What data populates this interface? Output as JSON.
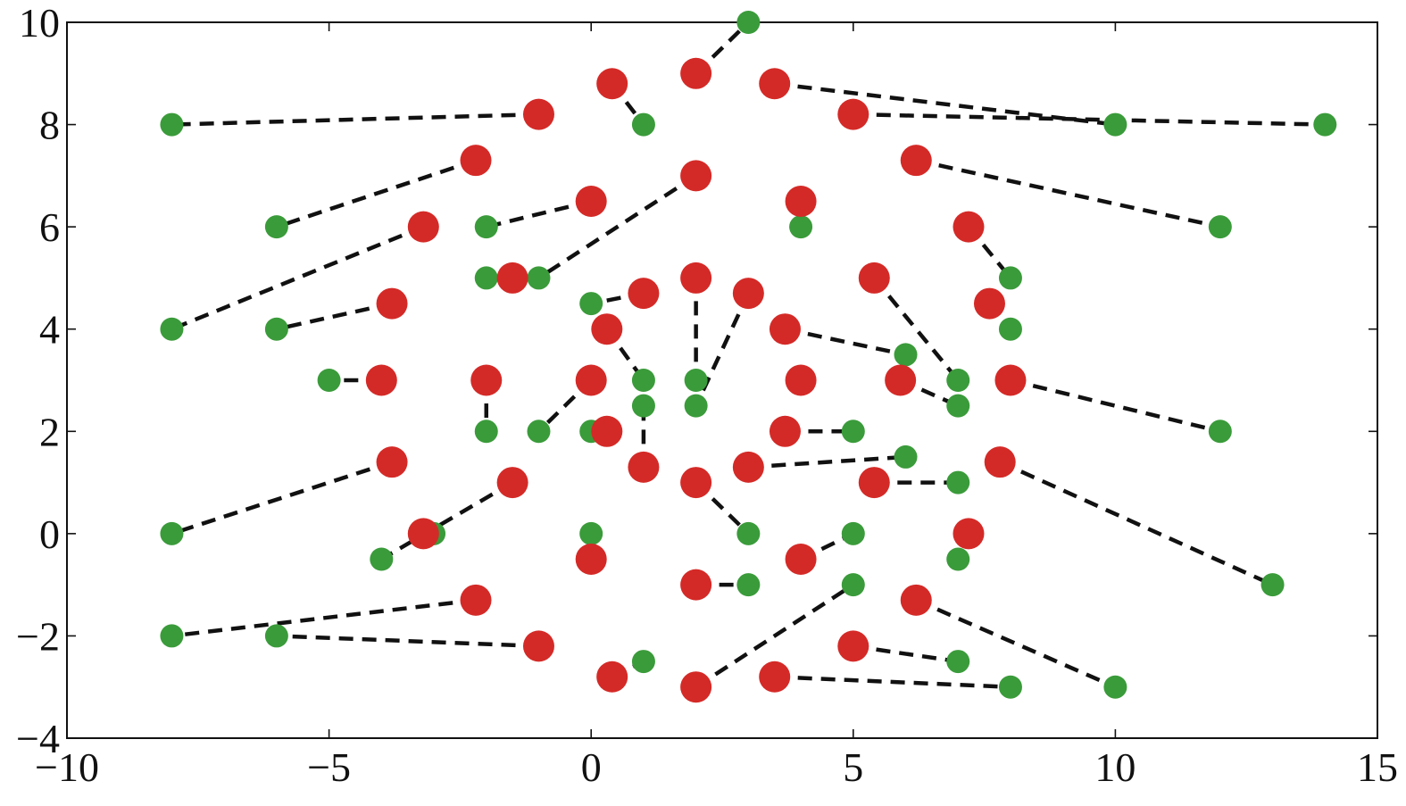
{
  "chart_data": {
    "type": "scatter",
    "title": "",
    "xlabel": "",
    "ylabel": "",
    "xlim": [
      -10,
      15
    ],
    "ylim": [
      -4,
      10
    ],
    "xticks": [
      -10,
      -5,
      0,
      5,
      10,
      15
    ],
    "yticks": [
      -4,
      -2,
      0,
      2,
      4,
      6,
      8,
      10
    ],
    "xtick_labels": [
      "−10",
      "−5",
      "0",
      "5",
      "10",
      "15"
    ],
    "ytick_labels": [
      "−4",
      "−2",
      "0",
      "2",
      "4",
      "6",
      "8",
      "10"
    ],
    "grid": false,
    "legend": "none",
    "colors": {
      "green_points": "#3a9b3a",
      "red_points": "#d42a27",
      "links": "#111111"
    },
    "pairs": [
      {
        "green": [
          -8,
          8
        ],
        "red": [
          -1,
          8.2
        ]
      },
      {
        "green": [
          1,
          8
        ],
        "red": [
          0.4,
          8.8
        ]
      },
      {
        "green": [
          3,
          10
        ],
        "red": [
          2,
          9
        ]
      },
      {
        "green": [
          10,
          8
        ],
        "red": [
          3.5,
          8.8
        ]
      },
      {
        "green": [
          14,
          8
        ],
        "red": [
          5,
          8.2
        ]
      },
      {
        "green": [
          -6,
          6
        ],
        "red": [
          -2.2,
          7.3
        ]
      },
      {
        "green": [
          -2,
          6
        ],
        "red": [
          0,
          6.5
        ]
      },
      {
        "green": [
          -1,
          5
        ],
        "red": [
          2,
          7
        ]
      },
      {
        "green": [
          4,
          6
        ],
        "red": [
          4,
          6.5
        ]
      },
      {
        "green": [
          12,
          6
        ],
        "red": [
          6.2,
          7.3
        ]
      },
      {
        "green": [
          8,
          5
        ],
        "red": [
          7.2,
          6
        ]
      },
      {
        "green": [
          -8,
          4
        ],
        "red": [
          -3.2,
          6
        ]
      },
      {
        "green": [
          -6,
          4
        ],
        "red": [
          -3.8,
          4.5
        ]
      },
      {
        "green": [
          -2,
          5
        ],
        "red": [
          -1.5,
          5
        ]
      },
      {
        "green": [
          0,
          4.5
        ],
        "red": [
          1,
          4.7
        ]
      },
      {
        "green": [
          2,
          3
        ],
        "red": [
          2,
          5
        ]
      },
      {
        "green": [
          2,
          2.5
        ],
        "red": [
          3,
          4.7
        ]
      },
      {
        "green": [
          7,
          3
        ],
        "red": [
          5.4,
          5
        ]
      },
      {
        "green": [
          8,
          4
        ],
        "red": [
          7.6,
          4.5
        ]
      },
      {
        "green": [
          1,
          3
        ],
        "red": [
          0.3,
          4
        ]
      },
      {
        "green": [
          6,
          3.5
        ],
        "red": [
          3.7,
          4
        ]
      },
      {
        "green": [
          -5,
          3
        ],
        "red": [
          -4,
          3
        ]
      },
      {
        "green": [
          -2,
          2
        ],
        "red": [
          -2,
          3
        ]
      },
      {
        "green": [
          -1,
          2
        ],
        "red": [
          0,
          3
        ]
      },
      {
        "green": [
          4,
          3
        ],
        "red": [
          4,
          3
        ]
      },
      {
        "green": [
          7,
          2.5
        ],
        "red": [
          5.9,
          3
        ]
      },
      {
        "green": [
          12,
          2
        ],
        "red": [
          8,
          3
        ]
      },
      {
        "green": [
          0,
          2
        ],
        "red": [
          0.3,
          2
        ]
      },
      {
        "green": [
          1,
          2.5
        ],
        "red": [
          1,
          1.3
        ]
      },
      {
        "green": [
          5,
          2
        ],
        "red": [
          3.7,
          2
        ]
      },
      {
        "green": [
          6,
          1.5
        ],
        "red": [
          3,
          1.3
        ]
      },
      {
        "green": [
          7,
          1
        ],
        "red": [
          5.4,
          1
        ]
      },
      {
        "green": [
          13,
          -1
        ],
        "red": [
          7.8,
          1.4
        ]
      },
      {
        "green": [
          -8,
          0
        ],
        "red": [
          -3.8,
          1.4
        ]
      },
      {
        "green": [
          -3,
          0
        ],
        "red": [
          -3.2,
          0
        ]
      },
      {
        "green": [
          -4,
          -0.5
        ],
        "red": [
          -1.5,
          1
        ]
      },
      {
        "green": [
          0,
          0
        ],
        "red": [
          0,
          -0.5
        ]
      },
      {
        "green": [
          3,
          0
        ],
        "red": [
          2,
          1
        ]
      },
      {
        "green": [
          5,
          0
        ],
        "red": [
          4,
          -0.5
        ]
      },
      {
        "green": [
          7,
          -0.5
        ],
        "red": [
          7.2,
          0
        ]
      },
      {
        "green": [
          3,
          -1
        ],
        "red": [
          2,
          -1
        ]
      },
      {
        "green": [
          -8,
          -2
        ],
        "red": [
          -2.2,
          -1.3
        ]
      },
      {
        "green": [
          -6,
          -2
        ],
        "red": [
          -1,
          -2.2
        ]
      },
      {
        "green": [
          1,
          -2.5
        ],
        "red": [
          0.4,
          -2.8
        ]
      },
      {
        "green": [
          5,
          -1
        ],
        "red": [
          2,
          -3
        ]
      },
      {
        "green": [
          7,
          -2.5
        ],
        "red": [
          5,
          -2.2
        ]
      },
      {
        "green": [
          8,
          -3
        ],
        "red": [
          3.5,
          -2.8
        ]
      },
      {
        "green": [
          10,
          -3
        ],
        "red": [
          6.2,
          -1.3
        ]
      }
    ]
  }
}
